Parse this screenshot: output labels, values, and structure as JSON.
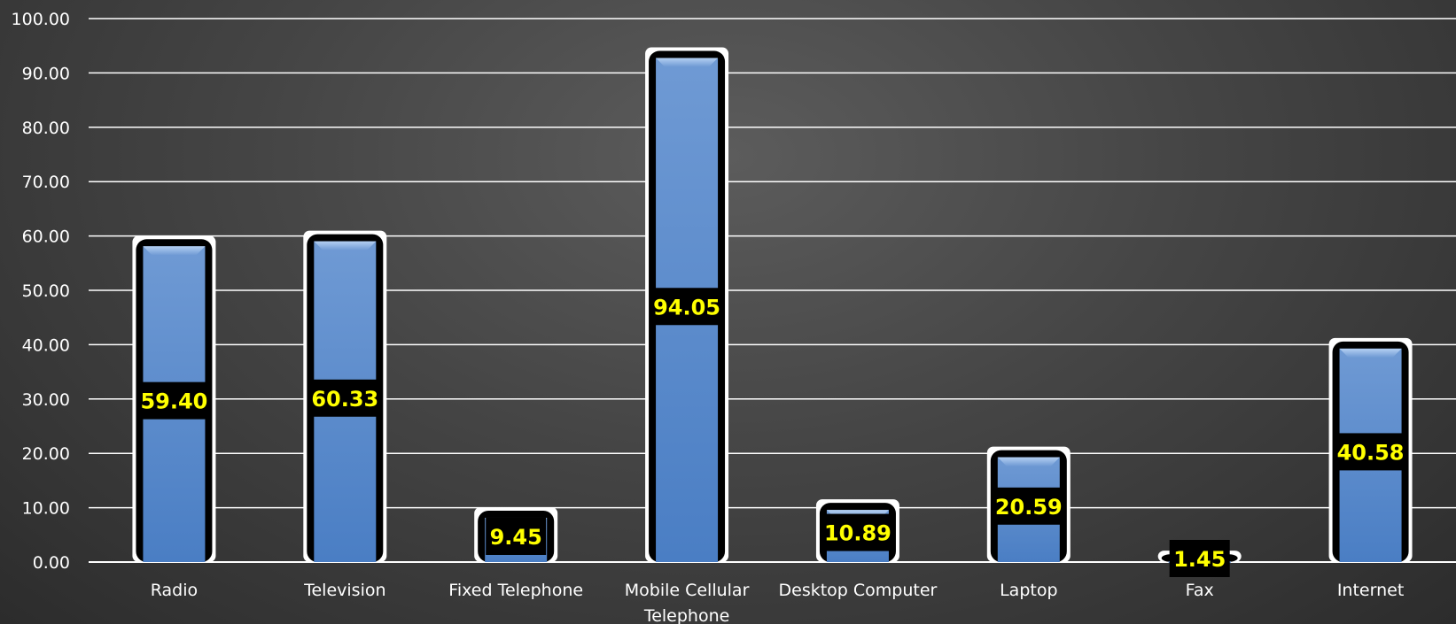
{
  "chart_data": {
    "type": "bar",
    "categories": [
      "Radio",
      "Television",
      "Fixed Telephone",
      "Mobile  Cellular Telephone",
      "Desktop Computer",
      "Laptop",
      "Fax",
      "Internet"
    ],
    "values": [
      59.4,
      60.33,
      9.45,
      94.05,
      10.89,
      20.59,
      1.45,
      40.58
    ],
    "data_labels": [
      "59.40",
      "60.33",
      "9.45",
      "94.05",
      "10.89",
      "20.59",
      "1.45",
      "40.58"
    ],
    "y_ticks": [
      "0.00",
      "10.00",
      "20.00",
      "30.00",
      "40.00",
      "50.00",
      "60.00",
      "70.00",
      "80.00",
      "90.00",
      "100.00"
    ],
    "ylim": [
      0,
      100
    ],
    "grid": true,
    "legend": "none",
    "colors": {
      "bar_fill": "#4f81bd",
      "bar_light": "#7aa5de",
      "bar_outline": "#000000",
      "bar_halo": "#ffffff",
      "gridline": "#ffffff",
      "label_text": "#ffff00",
      "label_bg": "#000000"
    }
  }
}
